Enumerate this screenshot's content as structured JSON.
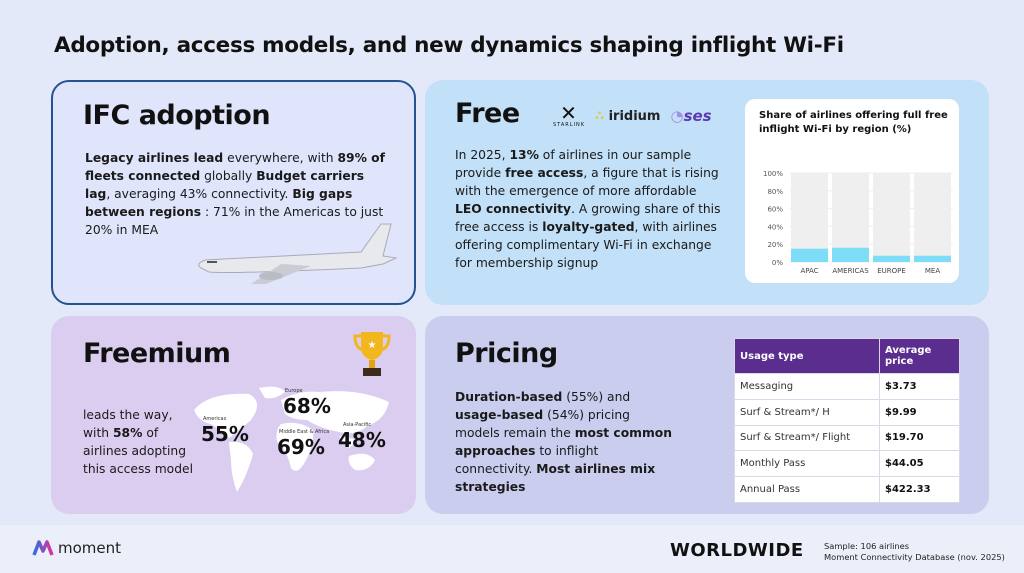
{
  "title": "Adoption, access models, and new dynamics shaping inflight Wi-Fi",
  "adoption": {
    "heading": "IFC adoption",
    "paragraph": [
      {
        "t": "Legacy airlines lead",
        "b": true
      },
      {
        "t": " everywhere, with ",
        "b": false
      },
      {
        "t": "89% of fleets connected",
        "b": true
      },
      {
        "t": " globally ",
        "b": false
      },
      {
        "t": "Budget carriers lag",
        "b": true
      },
      {
        "t": ", averaging 43% connectivity. ",
        "b": false
      },
      {
        "t": "Big gaps between regions",
        "b": true
      },
      {
        "t": " : 71% in the Americas to just 20% in MEA",
        "b": false
      }
    ]
  },
  "free": {
    "heading": "Free",
    "logos": [
      "STARLINK",
      "iridium",
      "ses"
    ],
    "paragraph": [
      {
        "t": "In 2025, ",
        "b": false
      },
      {
        "t": "13%",
        "b": true
      },
      {
        "t": " of airlines in our sample provide ",
        "b": false
      },
      {
        "t": "free access",
        "b": true
      },
      {
        "t": ", a figure that is rising with the emergence of more affordable ",
        "b": false
      },
      {
        "t": "LEO connectivity",
        "b": true
      },
      {
        "t": ". A growing share of this free access is ",
        "b": false
      },
      {
        "t": "loyalty-gated",
        "b": true
      },
      {
        "t": ", with airlines offering complimentary Wi-Fi in exchange for membership signup",
        "b": false
      }
    ]
  },
  "chart_data": {
    "type": "bar",
    "title": "Share of airlines offering full free inflight Wi-Fi by region (%)",
    "categories": [
      "APAC",
      "AMERICAS",
      "EUROPE",
      "MEA"
    ],
    "values": [
      15,
      16,
      7,
      7
    ],
    "ylim": [
      0,
      100
    ],
    "yticks": [
      "0%",
      "20%",
      "40%",
      "60%",
      "80%",
      "100%"
    ],
    "bar_color": "#7ddcf6",
    "background_bar_color": "#efefef"
  },
  "freemium": {
    "heading": "Freemium",
    "paragraph": [
      {
        "t": "leads the way, with ",
        "b": false
      },
      {
        "t": "58%",
        "b": true
      },
      {
        "t": " of airlines adopting this access model",
        "b": false
      }
    ],
    "regions": [
      {
        "label": "Americas",
        "value": "55%"
      },
      {
        "label": "Europe",
        "value": "68%"
      },
      {
        "label": "Middle East & Africa",
        "value": "69%"
      },
      {
        "label": "Asia-Pacific",
        "value": "48%"
      }
    ]
  },
  "pricing": {
    "heading": "Pricing",
    "paragraph": [
      {
        "t": "Duration-based",
        "b": true
      },
      {
        "t": " (55%) and ",
        "b": false
      },
      {
        "t": "usage-based",
        "b": true
      },
      {
        "t": " (54%) pricing models remain the ",
        "b": false
      },
      {
        "t": "most common approaches",
        "b": true
      },
      {
        "t": " to inflight connectivity. ",
        "b": false
      },
      {
        "t": "Most airlines mix strategies",
        "b": true
      }
    ],
    "table": {
      "headers": [
        "Usage type",
        "Average price"
      ],
      "rows": [
        [
          "Messaging",
          "$3.73"
        ],
        [
          "Surf & Stream*/ H",
          "$9.99"
        ],
        [
          "Surf & Stream*/ Flight",
          "$19.70"
        ],
        [
          "Monthly Pass",
          "$44.05"
        ],
        [
          "Annual Pass",
          "$422.33"
        ]
      ]
    }
  },
  "footer": {
    "brand": "moment",
    "scope": "WORLDWIDE",
    "sample": "Sample: 106 airlines",
    "source": "Moment Connectivity Database (nov. 2025)"
  },
  "colors": {
    "background": "#e3e9f8",
    "adoption_card": "#e1e5fb",
    "free_card": "#c2e0f7",
    "freemium_card": "#dbcdf0",
    "pricing_card": "#cacdee",
    "table_header": "#5b2d8e"
  }
}
